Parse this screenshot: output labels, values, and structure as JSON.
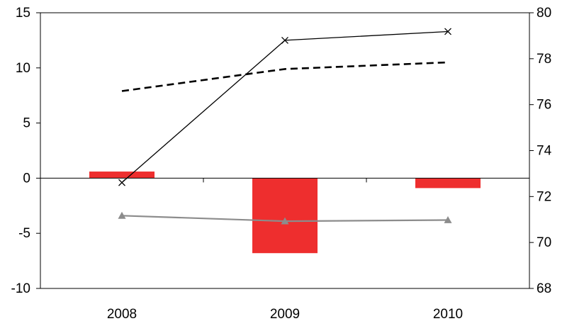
{
  "chart_data": {
    "type": "bar",
    "categories": [
      "2008",
      "2009",
      "2010"
    ],
    "left_axis": {
      "ylim": [
        -10,
        15
      ],
      "ticks": [
        -10,
        -5,
        0,
        5,
        10,
        15
      ]
    },
    "right_axis": {
      "ylim": [
        68,
        80
      ],
      "ticks": [
        68,
        70,
        72,
        74,
        76,
        78,
        80
      ]
    },
    "series": [
      {
        "kind": "bar",
        "axis": "left",
        "values": [
          0.6,
          -6.8,
          -0.9
        ],
        "color": "#ee2e2e"
      },
      {
        "kind": "line",
        "axis": "left",
        "style": "solid-x-markers",
        "values": [
          -0.4,
          12.5,
          13.3
        ],
        "color": "#000000"
      },
      {
        "kind": "line",
        "axis": "left",
        "style": "dashed",
        "values": [
          7.9,
          9.9,
          10.5
        ],
        "color": "#000000"
      },
      {
        "kind": "line",
        "axis": "left",
        "style": "solid-triangle-markers",
        "values": [
          -3.4,
          -3.9,
          -3.8
        ],
        "color": "#8c8c8c"
      }
    ],
    "grid": false,
    "legend": "none"
  }
}
